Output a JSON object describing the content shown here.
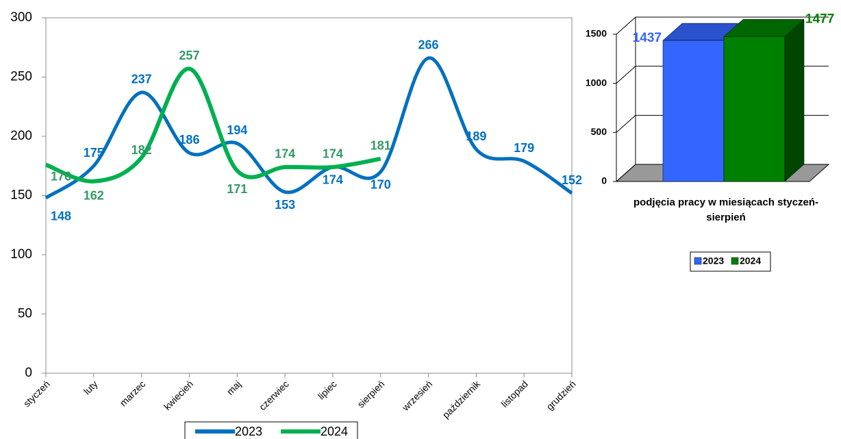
{
  "chart_data": [
    {
      "type": "line",
      "categories": [
        "styczeń",
        "luty",
        "marzec",
        "kwiecień",
        "maj",
        "czerwiec",
        "lipiec",
        "sierpień",
        "wrzesień",
        "październik",
        "listopad",
        "grudzień"
      ],
      "series": [
        {
          "name": "2023",
          "color": "#0070c0",
          "values": [
            148,
            175,
            237,
            186,
            194,
            153,
            174,
            170,
            266,
            189,
            179,
            152
          ]
        },
        {
          "name": "2024",
          "color": "#00b050",
          "label_color": "#339966",
          "values": [
            176,
            162,
            182,
            257,
            171,
            174,
            174,
            181,
            null,
            null,
            null,
            null
          ]
        }
      ],
      "ylim": [
        0,
        300
      ],
      "yticks": [
        0,
        50,
        100,
        150,
        200,
        250,
        300
      ],
      "legend": "bottom"
    },
    {
      "type": "bar3d",
      "xlabel": "podjęcia pracy w miesiącach styczeń-sierpień",
      "series": [
        {
          "name": "2023",
          "color": "#3366ff",
          "values": [
            1437
          ]
        },
        {
          "name": "2024",
          "color": "#008000",
          "values": [
            1477
          ]
        }
      ],
      "ylim": [
        0,
        1500
      ],
      "yticks": [
        0,
        500,
        1000,
        1500
      ],
      "legend": "bottom"
    }
  ]
}
